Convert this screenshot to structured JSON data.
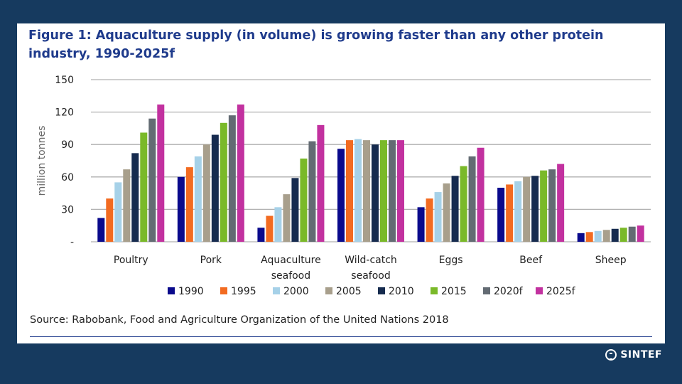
{
  "title": "Figure 1: Aquaculture supply (in volume) is growing faster than any other protein industry, 1990-2025f",
  "source": "Source: Rabobank, Food and Agriculture Organization of the United Nations 2018",
  "brand": "SINTEF",
  "colors": {
    "background": "#163a5f",
    "title": "#1f3b8c",
    "grid": "#b0b0b0"
  },
  "chart_data": {
    "type": "bar",
    "title": "Aquaculture supply (in volume) is growing faster than any other protein industry, 1990-2025f",
    "xlabel": "",
    "ylabel": "million tonnes",
    "ylim": [
      0,
      150
    ],
    "yticks": [
      0,
      30,
      60,
      90,
      120,
      150
    ],
    "ytick_labels": [
      "-",
      "30",
      "60",
      "90",
      "120",
      "150"
    ],
    "grid": true,
    "legend_position": "bottom",
    "categories": [
      [
        "Poultry"
      ],
      [
        "Pork"
      ],
      [
        "Aquaculture",
        "seafood"
      ],
      [
        "Wild-catch",
        "seafood"
      ],
      [
        "Eggs"
      ],
      [
        "Beef"
      ],
      [
        "Sheep"
      ]
    ],
    "series": [
      {
        "name": "1990",
        "color": "#0a0a8c",
        "values": [
          22,
          60,
          13,
          86,
          32,
          50,
          8
        ]
      },
      {
        "name": "1995",
        "color": "#f26b21",
        "values": [
          40,
          69,
          24,
          94,
          40,
          53,
          9
        ]
      },
      {
        "name": "2000",
        "color": "#a6d1e8",
        "values": [
          55,
          79,
          32,
          95,
          46,
          56,
          10
        ]
      },
      {
        "name": "2005",
        "color": "#a89f8c",
        "values": [
          67,
          90,
          44,
          94,
          54,
          60,
          11
        ]
      },
      {
        "name": "2010",
        "color": "#162b4f",
        "values": [
          82,
          99,
          59,
          90,
          61,
          61,
          12
        ]
      },
      {
        "name": "2015",
        "color": "#7ab929",
        "values": [
          101,
          110,
          77,
          94,
          70,
          66,
          13
        ]
      },
      {
        "name": "2020f",
        "color": "#636b73",
        "values": [
          114,
          117,
          93,
          94,
          79,
          67,
          14
        ]
      },
      {
        "name": "2025f",
        "color": "#c2319f",
        "values": [
          127,
          127,
          108,
          94,
          87,
          72,
          15
        ]
      }
    ]
  }
}
